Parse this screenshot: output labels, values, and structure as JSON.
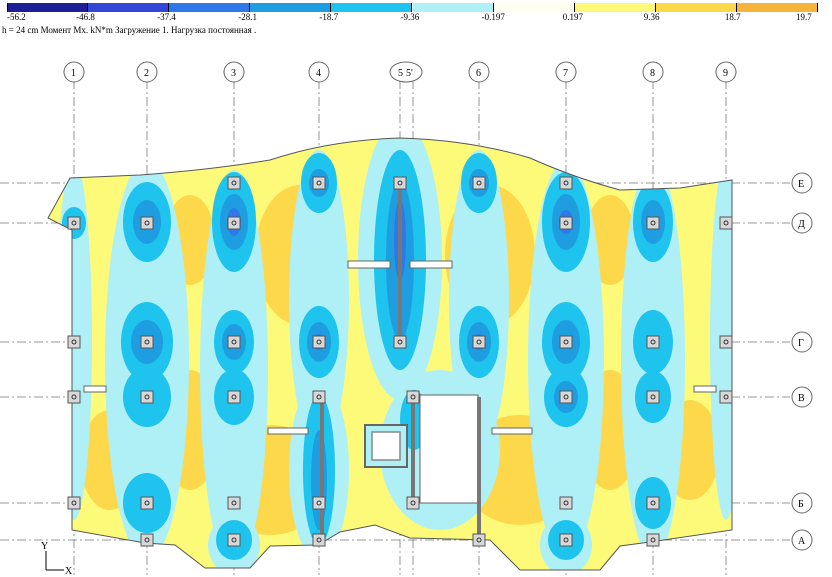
{
  "legend": {
    "labels": [
      "-56.2",
      "-46.8",
      "-37.4",
      "-28.1",
      "-18.7",
      "-9.36",
      "-0.197",
      "0.197",
      "9.36",
      "18.7",
      "19.7"
    ],
    "colors": [
      "#1e1e96",
      "#3246d8",
      "#2e78ea",
      "#1e9ee0",
      "#1ec3ee",
      "#aef0f6",
      "#fffff0",
      "#fdfa7a",
      "#fcd84a",
      "#f7b33a"
    ]
  },
  "caption": "h = 24 cm   Момент Mx. kN*m   Загружение 1.   Нагрузка постоянная .",
  "axes": {
    "vertical": [
      "1",
      "2",
      "3",
      "4",
      "5",
      "5'",
      "6",
      "7",
      "8",
      "9"
    ],
    "horizontal": [
      "Е",
      "Д",
      "Г",
      "В",
      "Б",
      "А"
    ]
  },
  "coord_axes": {
    "y": "Y",
    "x": "X"
  }
}
